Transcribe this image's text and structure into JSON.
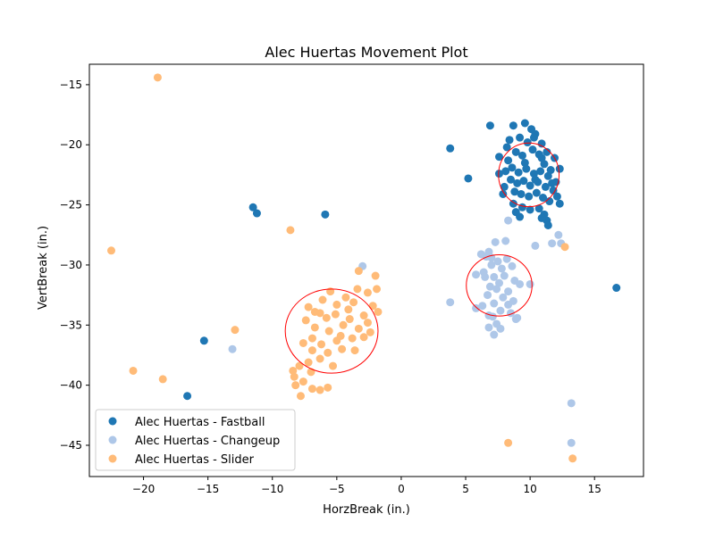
{
  "chart_data": {
    "type": "scatter",
    "title": "Alec Huertas Movement Plot",
    "xlabel": "HorzBreak (in.)",
    "ylabel": "VertBreak (in.)",
    "xlim": [
      -24.2,
      18.8
    ],
    "ylim": [
      -47.6,
      -13.3
    ],
    "xticks": [
      -20,
      -15,
      -10,
      -5,
      0,
      5,
      10,
      15
    ],
    "yticks": [
      -15,
      -20,
      -25,
      -30,
      -35,
      -40,
      -45
    ],
    "grid": false,
    "legend_position": "bottom-left",
    "series": [
      {
        "name": "Alec Huertas - Fastball",
        "color": "#1f77b4",
        "cluster_center": [
          9.9,
          -22.5
        ],
        "points": [
          [
            6.9,
            -18.4
          ],
          [
            3.8,
            -20.3
          ],
          [
            5.2,
            -22.8
          ],
          [
            -11.5,
            -25.2
          ],
          [
            -11.2,
            -25.7
          ],
          [
            -5.9,
            -25.8
          ],
          [
            -15.3,
            -36.3
          ],
          [
            -16.6,
            -40.9
          ],
          [
            16.7,
            -31.9
          ],
          [
            9.6,
            -18.2
          ],
          [
            8.7,
            -18.4
          ],
          [
            10.1,
            -18.7
          ],
          [
            9.2,
            -19.4
          ],
          [
            10.4,
            -19.1
          ],
          [
            8.4,
            -19.6
          ],
          [
            9.8,
            -19.8
          ],
          [
            10.9,
            -19.9
          ],
          [
            11.3,
            -20.6
          ],
          [
            11.9,
            -21.1
          ],
          [
            7.6,
            -21.0
          ],
          [
            8.3,
            -21.3
          ],
          [
            8.9,
            -20.6
          ],
          [
            9.4,
            -20.9
          ],
          [
            10.2,
            -20.4
          ],
          [
            10.7,
            -20.8
          ],
          [
            11.1,
            -21.6
          ],
          [
            11.6,
            -22.1
          ],
          [
            12.3,
            -22.0
          ],
          [
            8.1,
            -22.2
          ],
          [
            8.6,
            -21.9
          ],
          [
            9.1,
            -22.3
          ],
          [
            9.7,
            -22.0
          ],
          [
            10.3,
            -22.4
          ],
          [
            10.8,
            -22.2
          ],
          [
            11.4,
            -22.6
          ],
          [
            12.0,
            -23.1
          ],
          [
            8.5,
            -22.9
          ],
          [
            9.0,
            -23.2
          ],
          [
            9.5,
            -23.0
          ],
          [
            10.0,
            -23.4
          ],
          [
            10.6,
            -23.1
          ],
          [
            11.2,
            -23.5
          ],
          [
            11.8,
            -23.8
          ],
          [
            8.8,
            -23.9
          ],
          [
            9.3,
            -24.1
          ],
          [
            9.9,
            -24.3
          ],
          [
            10.5,
            -24.0
          ],
          [
            11.0,
            -24.4
          ],
          [
            11.5,
            -24.7
          ],
          [
            12.1,
            -24.3
          ],
          [
            7.9,
            -24.1
          ],
          [
            8.7,
            -24.9
          ],
          [
            9.4,
            -25.2
          ],
          [
            10.0,
            -25.4
          ],
          [
            10.7,
            -25.3
          ],
          [
            11.1,
            -25.8
          ],
          [
            11.3,
            -26.3
          ],
          [
            10.9,
            -26.1
          ],
          [
            11.4,
            -26.7
          ],
          [
            8.2,
            -20.2
          ],
          [
            7.6,
            -22.4
          ],
          [
            8.9,
            -25.6
          ],
          [
            12.3,
            -24.9
          ],
          [
            10.3,
            -19.4
          ],
          [
            9.6,
            -21.5
          ],
          [
            10.9,
            -21.1
          ],
          [
            11.7,
            -23.2
          ],
          [
            8.0,
            -23.5
          ],
          [
            9.2,
            -26.0
          ],
          [
            10.4,
            -22.9
          ]
        ]
      },
      {
        "name": "Alec Huertas - Changeup",
        "color": "#aec7e8",
        "cluster_center": [
          7.6,
          -31.7
        ],
        "points": [
          [
            10.4,
            -28.4
          ],
          [
            11.7,
            -28.2
          ],
          [
            12.2,
            -27.5
          ],
          [
            12.4,
            -28.2
          ],
          [
            8.3,
            -26.3
          ],
          [
            8.1,
            -28.0
          ],
          [
            7.3,
            -28.1
          ],
          [
            6.8,
            -28.9
          ],
          [
            6.2,
            -29.1
          ],
          [
            6.6,
            -29.3
          ],
          [
            8.2,
            -29.5
          ],
          [
            7.5,
            -29.7
          ],
          [
            7.0,
            -30.0
          ],
          [
            8.6,
            -30.1
          ],
          [
            7.8,
            -30.3
          ],
          [
            6.4,
            -30.6
          ],
          [
            5.8,
            -30.8
          ],
          [
            7.2,
            -31.0
          ],
          [
            8.0,
            -30.9
          ],
          [
            8.8,
            -31.3
          ],
          [
            7.6,
            -31.5
          ],
          [
            6.9,
            -31.8
          ],
          [
            7.4,
            -32.0
          ],
          [
            8.3,
            -32.2
          ],
          [
            9.2,
            -31.6
          ],
          [
            10.0,
            -31.6
          ],
          [
            6.7,
            -32.5
          ],
          [
            7.9,
            -32.7
          ],
          [
            8.7,
            -33.0
          ],
          [
            7.2,
            -33.2
          ],
          [
            6.3,
            -33.4
          ],
          [
            5.8,
            -33.6
          ],
          [
            7.7,
            -33.8
          ],
          [
            8.5,
            -34.0
          ],
          [
            7.1,
            -34.3
          ],
          [
            8.9,
            -34.5
          ],
          [
            6.8,
            -34.2
          ],
          [
            7.4,
            -34.9
          ],
          [
            6.8,
            -35.2
          ],
          [
            7.7,
            -35.3
          ],
          [
            7.2,
            -35.8
          ],
          [
            9.0,
            -34.4
          ],
          [
            8.3,
            -33.3
          ],
          [
            6.5,
            -31.0
          ],
          [
            7.0,
            -29.4
          ],
          [
            3.8,
            -33.1
          ],
          [
            -3.0,
            -30.1
          ],
          [
            -13.1,
            -37.0
          ],
          [
            13.2,
            -41.5
          ],
          [
            13.2,
            -44.8
          ]
        ]
      },
      {
        "name": "Alec Huertas - Slider",
        "color": "#ffbb78",
        "cluster_center": [
          -5.4,
          -35.5
        ],
        "points": [
          [
            -18.9,
            -14.4
          ],
          [
            -22.5,
            -28.8
          ],
          [
            -8.6,
            -27.1
          ],
          [
            -12.9,
            -35.4
          ],
          [
            -20.8,
            -38.8
          ],
          [
            -18.5,
            -39.5
          ],
          [
            12.7,
            -28.5
          ],
          [
            8.3,
            -44.8
          ],
          [
            13.3,
            -46.1
          ],
          [
            -3.3,
            -30.5
          ],
          [
            -2.0,
            -30.9
          ],
          [
            -1.9,
            -32.0
          ],
          [
            -2.6,
            -32.3
          ],
          [
            -3.4,
            -32.0
          ],
          [
            -4.3,
            -32.7
          ],
          [
            -5.5,
            -32.2
          ],
          [
            -6.1,
            -32.9
          ],
          [
            -7.2,
            -33.5
          ],
          [
            -5.0,
            -33.3
          ],
          [
            -3.7,
            -33.1
          ],
          [
            -2.2,
            -33.4
          ],
          [
            -1.8,
            -33.9
          ],
          [
            -2.9,
            -34.2
          ],
          [
            -4.0,
            -34.5
          ],
          [
            -5.1,
            -34.1
          ],
          [
            -6.3,
            -34.0
          ],
          [
            -7.4,
            -34.6
          ],
          [
            -6.7,
            -35.2
          ],
          [
            -5.6,
            -35.5
          ],
          [
            -4.5,
            -35.0
          ],
          [
            -3.3,
            -35.3
          ],
          [
            -2.4,
            -35.6
          ],
          [
            -3.8,
            -36.1
          ],
          [
            -5.0,
            -36.3
          ],
          [
            -6.2,
            -36.6
          ],
          [
            -7.6,
            -36.5
          ],
          [
            -6.9,
            -37.1
          ],
          [
            -5.7,
            -37.3
          ],
          [
            -4.6,
            -37.0
          ],
          [
            -3.6,
            -37.1
          ],
          [
            -6.3,
            -37.8
          ],
          [
            -7.2,
            -38.1
          ],
          [
            -5.3,
            -38.4
          ],
          [
            -7.9,
            -38.4
          ],
          [
            -7.0,
            -38.9
          ],
          [
            -8.4,
            -38.8
          ],
          [
            -8.3,
            -39.3
          ],
          [
            -7.6,
            -39.7
          ],
          [
            -6.9,
            -40.3
          ],
          [
            -6.3,
            -40.4
          ],
          [
            -5.7,
            -40.2
          ],
          [
            -7.8,
            -40.9
          ],
          [
            -8.2,
            -40.0
          ],
          [
            -4.7,
            -35.9
          ],
          [
            -2.9,
            -36.0
          ],
          [
            -5.8,
            -34.4
          ],
          [
            -6.7,
            -33.9
          ],
          [
            -4.1,
            -33.7
          ],
          [
            -2.6,
            -34.8
          ],
          [
            -6.9,
            -36.1
          ]
        ]
      }
    ],
    "ellipses": [
      {
        "cx": 9.9,
        "cy": -22.5,
        "rx": 2.35,
        "ry": 2.65,
        "color": "#ff0000"
      },
      {
        "cx": 7.6,
        "cy": -31.7,
        "rx": 2.55,
        "ry": 2.55,
        "color": "#ff0000"
      },
      {
        "cx": -5.4,
        "cy": -35.5,
        "rx": 3.6,
        "ry": 3.5,
        "color": "#ff0000"
      }
    ]
  }
}
